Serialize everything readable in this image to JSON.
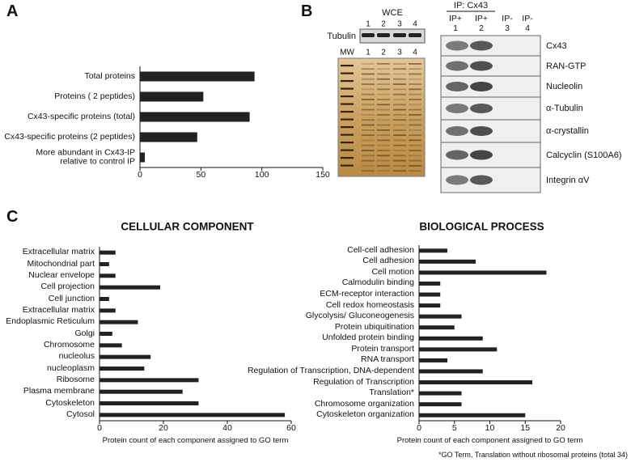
{
  "panels": [
    "A",
    "B",
    "C"
  ],
  "blots": {
    "wce": "WCE",
    "wce_lanes": [
      "1",
      "2",
      "3",
      "4"
    ],
    "tubulin": "Tubulin",
    "mw": "MW",
    "gel_lanes": [
      "1",
      "2",
      "3",
      "4"
    ],
    "ip": "IP: Cx43",
    "ip_lanes": [
      [
        "IP+",
        "1"
      ],
      [
        "IP+",
        "2"
      ],
      [
        "IP-",
        "3"
      ],
      [
        "IP-",
        "4"
      ]
    ],
    "proteins": [
      "Cx43",
      "RAN-GTP",
      "Nucleolin",
      "α-Tubulin",
      "α-crystallin",
      "Calcyclin (S100A6)",
      "Integrin αV"
    ]
  },
  "chart_data": [
    {
      "type": "bar",
      "orientation": "horizontal",
      "categories": [
        "Total proteins",
        "Proteins ( 2 peptides)",
        "Cx43-specific proteins (total)",
        "Cx43-specific proteins (2 peptides)",
        "More abundant in Cx43-IP\nrelative to control IP"
      ],
      "values": [
        94,
        52,
        90,
        47,
        4
      ],
      "color": "#222222",
      "xlim": [
        0,
        150
      ],
      "xticks": [
        0,
        50,
        100,
        150
      ]
    },
    {
      "type": "bar",
      "orientation": "horizontal",
      "title": "CELLULAR COMPONENT",
      "xlabel": "Protein count of each component assigned to GO term",
      "categories": [
        "Extracellular matrix",
        "Mitochondrial part",
        "Nuclear envelope",
        "Cell projection",
        "Cell junction",
        "Extracellular matrix",
        "Endoplasmic Reticulum",
        "Golgi",
        "Chromosome",
        "nucleolus",
        "nucleoplasm",
        "Ribosome",
        "Plasma membrane",
        "Cytoskeleton",
        "Cytosol"
      ],
      "values": [
        5,
        3,
        5,
        19,
        3,
        5,
        12,
        4,
        7,
        16,
        14,
        31,
        26,
        31,
        58
      ],
      "color": "#222222",
      "xlim": [
        0,
        60
      ],
      "xticks": [
        0,
        20,
        40,
        60
      ]
    },
    {
      "type": "bar",
      "orientation": "horizontal",
      "title": "BIOLOGICAL PROCESS",
      "xlabel": "Protein count of each component assigned to GO term",
      "categories": [
        "Cell-cell adhesion",
        "Cell adhesion",
        "Cell motion",
        "Calmodulin binding",
        "ECM-receptor interaction",
        "Cell redox homeostasis",
        "Glycolysis/ Gluconeogenesis",
        "Protein ubiquitination",
        "Unfolded protein binding",
        "Protein transport",
        "RNA transport",
        "Regulation of Transcription, DNA-dependent",
        "Regulation of Transcription",
        "Translation*",
        "Chromosome organization",
        "Cytoskeleton organization"
      ],
      "values": [
        4,
        8,
        18,
        3,
        3,
        3,
        6,
        5,
        9,
        11,
        4,
        9,
        16,
        6,
        6,
        15
      ],
      "color": "#222222",
      "xlim": [
        0,
        20
      ],
      "xticks": [
        0,
        5,
        10,
        15,
        20
      ]
    }
  ],
  "footnote": "*GO Term, Translation without ribosomal proteins (total 34)"
}
